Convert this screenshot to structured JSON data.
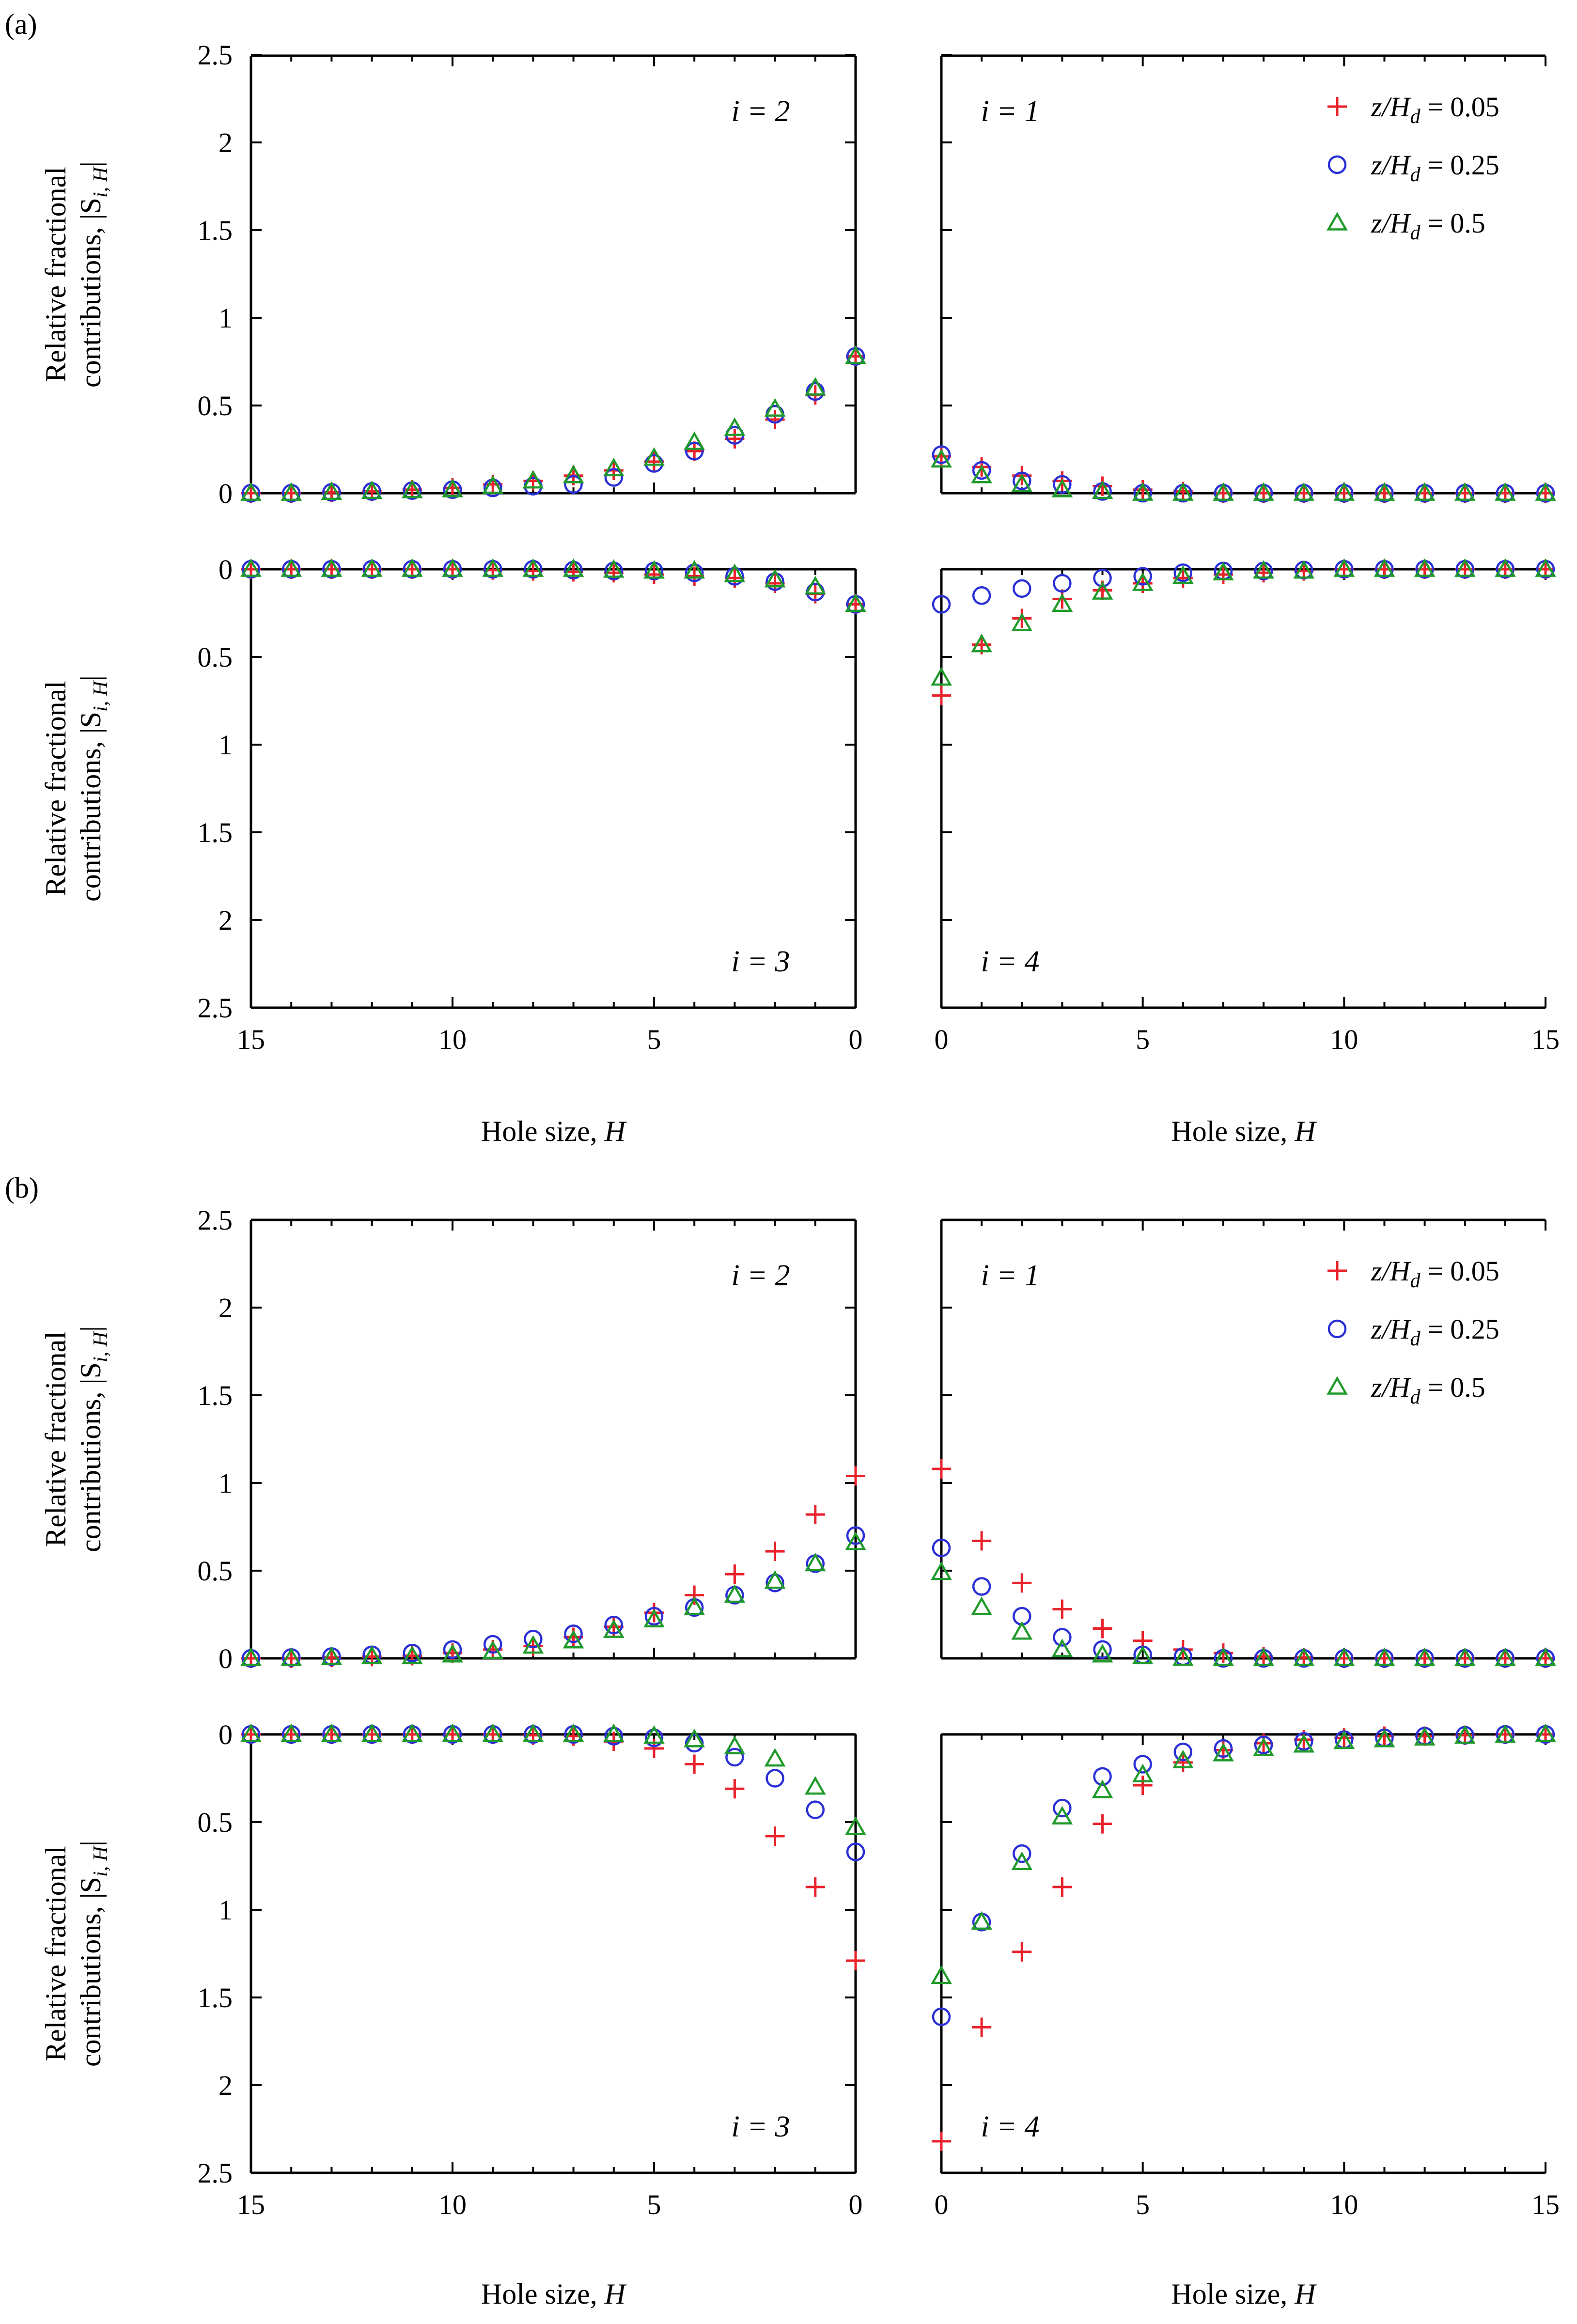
{
  "figure_labels": [
    "(a)",
    "(b)"
  ],
  "legend": [
    {
      "name": "z/H_d = 0.05",
      "var": "z/H",
      "sub": "d",
      "value": " = 0.05",
      "marker": "plus",
      "color": "#e8212b"
    },
    {
      "name": "z/H_d = 0.25",
      "var": "z/H",
      "sub": "d",
      "value": " = 0.25",
      "marker": "circle",
      "color": "#2a2fd6"
    },
    {
      "name": "z/H_d = 0.5",
      "var": "z/H",
      "sub": "d",
      "value": " = 0.5",
      "marker": "triangle",
      "color": "#1f9a2a"
    }
  ],
  "axes": {
    "xlabel": "Hole size, H",
    "xlabel_text": "Hole size, ",
    "xlabel_var": "H",
    "ylabel_line1": "Relative fractional",
    "ylabel_line2": "contributions, |S",
    "ylabel_sub": "i, H",
    "ylabel_end": "|",
    "xticks_left": [
      "15",
      "10",
      "5",
      "0"
    ],
    "xticks_right": [
      "0",
      "5",
      "10",
      "15"
    ],
    "yticks": [
      "0",
      "0.5",
      "1",
      "1.5",
      "2",
      "2.5"
    ],
    "xlim": [
      0,
      15
    ],
    "ylim": [
      0,
      2.5
    ]
  },
  "chart_data": [
    {
      "type": "scatter",
      "title": "(a)",
      "panels": [
        {
          "quadrant": "i = 2",
          "label": "i = 2",
          "series": [
            {
              "name": "z/H_d = 0.05",
              "values": [
                0.78,
                0.56,
                0.42,
                0.31,
                0.24,
                0.18,
                0.13,
                0.1,
                0.07,
                0.05,
                0.03,
                0.02,
                0.01,
                0.005,
                0.0,
                0.0
              ]
            },
            {
              "name": "z/H_d = 0.25",
              "values": [
                0.78,
                0.58,
                0.45,
                0.33,
                0.24,
                0.17,
                0.09,
                0.05,
                0.04,
                0.03,
                0.02,
                0.015,
                0.01,
                0.005,
                0.0,
                0.0
              ]
            },
            {
              "name": "z/H_d = 0.5",
              "values": [
                0.78,
                0.6,
                0.48,
                0.37,
                0.29,
                0.2,
                0.14,
                0.1,
                0.07,
                0.04,
                0.02,
                0.015,
                0.01,
                0.005,
                0.0,
                0.0
              ]
            }
          ]
        },
        {
          "quadrant": "i = 1",
          "label": "i = 1",
          "series": [
            {
              "name": "z/H_d = 0.05",
              "values": [
                0.21,
                0.15,
                0.1,
                0.07,
                0.04,
                0.02,
                0.01,
                0.0,
                0.0,
                0.0,
                0.0,
                0.0,
                0.0,
                0.0,
                0.0,
                0.0
              ]
            },
            {
              "name": "z/H_d = 0.25",
              "values": [
                0.22,
                0.13,
                0.07,
                0.05,
                0.01,
                0.0,
                0.0,
                0.0,
                0.0,
                0.0,
                0.0,
                0.0,
                0.0,
                0.0,
                0.0,
                0.0
              ]
            },
            {
              "name": "z/H_d = 0.5",
              "values": [
                0.19,
                0.1,
                0.05,
                0.02,
                0.01,
                0.0,
                0.0,
                0.0,
                0.0,
                0.0,
                0.0,
                0.0,
                0.0,
                0.0,
                0.0,
                0.0
              ]
            }
          ]
        },
        {
          "quadrant": "i = 3",
          "label": "i = 3",
          "series": [
            {
              "name": "z/H_d = 0.05",
              "values": [
                0.2,
                0.14,
                0.08,
                0.05,
                0.04,
                0.03,
                0.02,
                0.015,
                0.01,
                0.005,
                0.0,
                0.0,
                0.0,
                0.0,
                0.0,
                0.0
              ]
            },
            {
              "name": "z/H_d = 0.25",
              "values": [
                0.2,
                0.13,
                0.07,
                0.04,
                0.02,
                0.01,
                0.01,
                0.005,
                0.0,
                0.0,
                0.0,
                0.0,
                0.0,
                0.0,
                0.0,
                0.0
              ]
            },
            {
              "name": "z/H_d = 0.5",
              "values": [
                0.2,
                0.1,
                0.06,
                0.03,
                0.01,
                0.01,
                0.005,
                0.0,
                0.0,
                0.0,
                0.0,
                0.0,
                0.0,
                0.0,
                0.0,
                0.0
              ]
            }
          ]
        },
        {
          "quadrant": "i = 4",
          "label": "i = 4",
          "series": [
            {
              "name": "z/H_d = 0.05",
              "values": [
                0.72,
                0.43,
                0.28,
                0.17,
                0.12,
                0.08,
                0.05,
                0.03,
                0.02,
                0.01,
                0.0,
                0.0,
                0.0,
                0.0,
                0.0,
                0.0
              ]
            },
            {
              "name": "z/H_d = 0.25",
              "values": [
                0.2,
                0.15,
                0.11,
                0.08,
                0.05,
                0.04,
                0.02,
                0.01,
                0.01,
                0.005,
                0.0,
                0.0,
                0.0,
                0.0,
                0.0,
                0.0
              ]
            },
            {
              "name": "z/H_d = 0.5",
              "values": [
                0.62,
                0.43,
                0.31,
                0.2,
                0.13,
                0.08,
                0.04,
                0.02,
                0.01,
                0.01,
                0.0,
                0.0,
                0.0,
                0.0,
                0.0,
                0.0
              ]
            }
          ]
        }
      ]
    },
    {
      "type": "scatter",
      "title": "(b)",
      "panels": [
        {
          "quadrant": "i = 2",
          "label": "i = 2",
          "series": [
            {
              "name": "z/H_d = 0.05",
              "values": [
                1.04,
                0.82,
                0.61,
                0.48,
                0.36,
                0.26,
                0.18,
                0.12,
                0.07,
                0.05,
                0.03,
                0.015,
                0.01,
                0.005,
                0.0,
                0.0
              ]
            },
            {
              "name": "z/H_d = 0.25",
              "values": [
                0.7,
                0.54,
                0.43,
                0.36,
                0.29,
                0.24,
                0.19,
                0.14,
                0.11,
                0.08,
                0.05,
                0.03,
                0.02,
                0.01,
                0.005,
                0.0
              ]
            },
            {
              "name": "z/H_d = 0.5",
              "values": [
                0.66,
                0.54,
                0.44,
                0.36,
                0.29,
                0.22,
                0.16,
                0.1,
                0.07,
                0.04,
                0.02,
                0.01,
                0.01,
                0.005,
                0.0,
                0.0
              ]
            }
          ]
        },
        {
          "quadrant": "i = 1",
          "label": "i = 1",
          "series": [
            {
              "name": "z/H_d = 0.05",
              "values": [
                1.08,
                0.67,
                0.43,
                0.28,
                0.17,
                0.1,
                0.05,
                0.03,
                0.01,
                0.005,
                0.0,
                0.0,
                0.0,
                0.0,
                0.0,
                0.0
              ]
            },
            {
              "name": "z/H_d = 0.25",
              "values": [
                0.63,
                0.41,
                0.24,
                0.12,
                0.05,
                0.02,
                0.01,
                0.0,
                0.0,
                0.0,
                0.0,
                0.0,
                0.0,
                0.0,
                0.0,
                0.0
              ]
            },
            {
              "name": "z/H_d = 0.5",
              "values": [
                0.49,
                0.29,
                0.15,
                0.05,
                0.02,
                0.01,
                0.0,
                0.0,
                0.0,
                0.0,
                0.0,
                0.0,
                0.0,
                0.0,
                0.0,
                0.0
              ]
            }
          ]
        },
        {
          "quadrant": "i = 3",
          "label": "i = 3",
          "series": [
            {
              "name": "z/H_d = 0.05",
              "values": [
                1.29,
                0.87,
                0.58,
                0.31,
                0.17,
                0.08,
                0.04,
                0.01,
                0.005,
                0.0,
                0.0,
                0.0,
                0.0,
                0.0,
                0.0,
                0.0
              ]
            },
            {
              "name": "z/H_d = 0.25",
              "values": [
                0.67,
                0.43,
                0.25,
                0.13,
                0.05,
                0.02,
                0.01,
                0.0,
                0.0,
                0.0,
                0.0,
                0.0,
                0.0,
                0.0,
                0.0,
                0.0
              ]
            },
            {
              "name": "z/H_d = 0.5",
              "values": [
                0.53,
                0.3,
                0.14,
                0.07,
                0.03,
                0.01,
                0.0,
                0.0,
                0.0,
                0.0,
                0.0,
                0.0,
                0.0,
                0.0,
                0.0,
                0.0
              ]
            }
          ]
        },
        {
          "quadrant": "i = 4",
          "label": "i = 4",
          "series": [
            {
              "name": "z/H_d = 0.05",
              "values": [
                2.32,
                1.67,
                1.24,
                0.87,
                0.51,
                0.29,
                0.16,
                0.09,
                0.05,
                0.03,
                0.02,
                0.01,
                0.01,
                0.005,
                0.0,
                0.0
              ]
            },
            {
              "name": "z/H_d = 0.25",
              "values": [
                1.61,
                1.07,
                0.68,
                0.42,
                0.24,
                0.17,
                0.1,
                0.08,
                0.06,
                0.04,
                0.03,
                0.02,
                0.01,
                0.005,
                0.0,
                0.0
              ]
            },
            {
              "name": "z/H_d = 0.5",
              "values": [
                1.38,
                1.07,
                0.73,
                0.47,
                0.32,
                0.23,
                0.15,
                0.11,
                0.08,
                0.06,
                0.04,
                0.03,
                0.02,
                0.01,
                0.005,
                0.0
              ]
            }
          ]
        }
      ]
    }
  ]
}
